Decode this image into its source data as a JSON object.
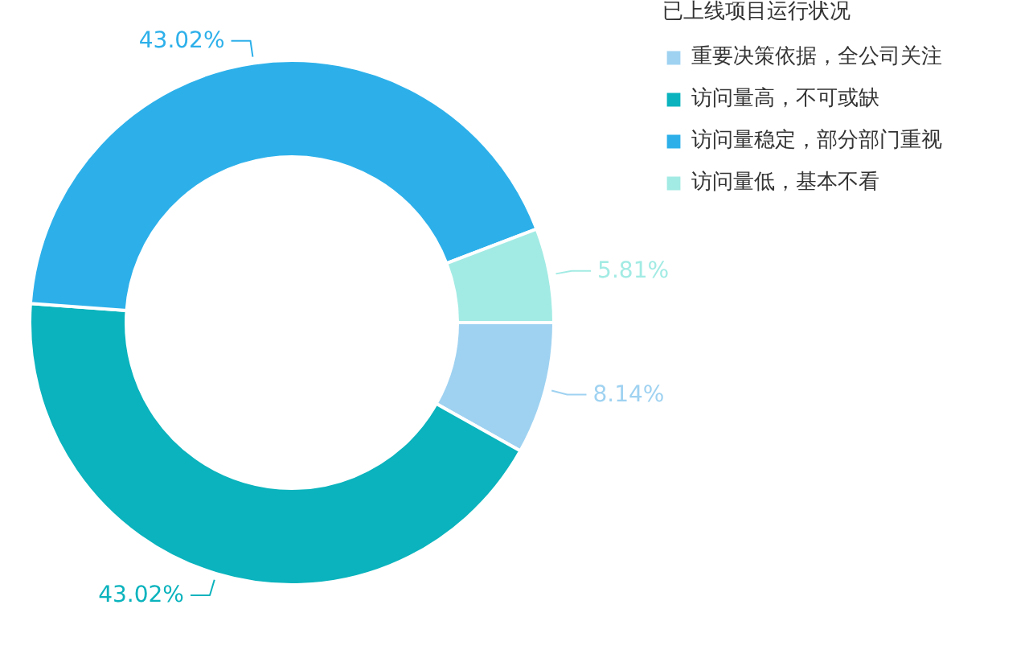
{
  "chart_data": {
    "type": "donut",
    "legend_title": "已上线项目运行状况",
    "legend": "top right",
    "categories": [
      "重要决策依据，全公司关注",
      "访问量高，不可或缺",
      "访问量稳定，部分部门重视",
      "访问量低，基本不看"
    ],
    "values": [
      8.14,
      43.02,
      43.02,
      5.81
    ],
    "colors": [
      "#9fd2f1",
      "#0ab3bd",
      "#2db0ea",
      "#a2ebe4"
    ],
    "value_labels": [
      "8.14%",
      "43.02%",
      "43.02%",
      "5.81%"
    ]
  }
}
